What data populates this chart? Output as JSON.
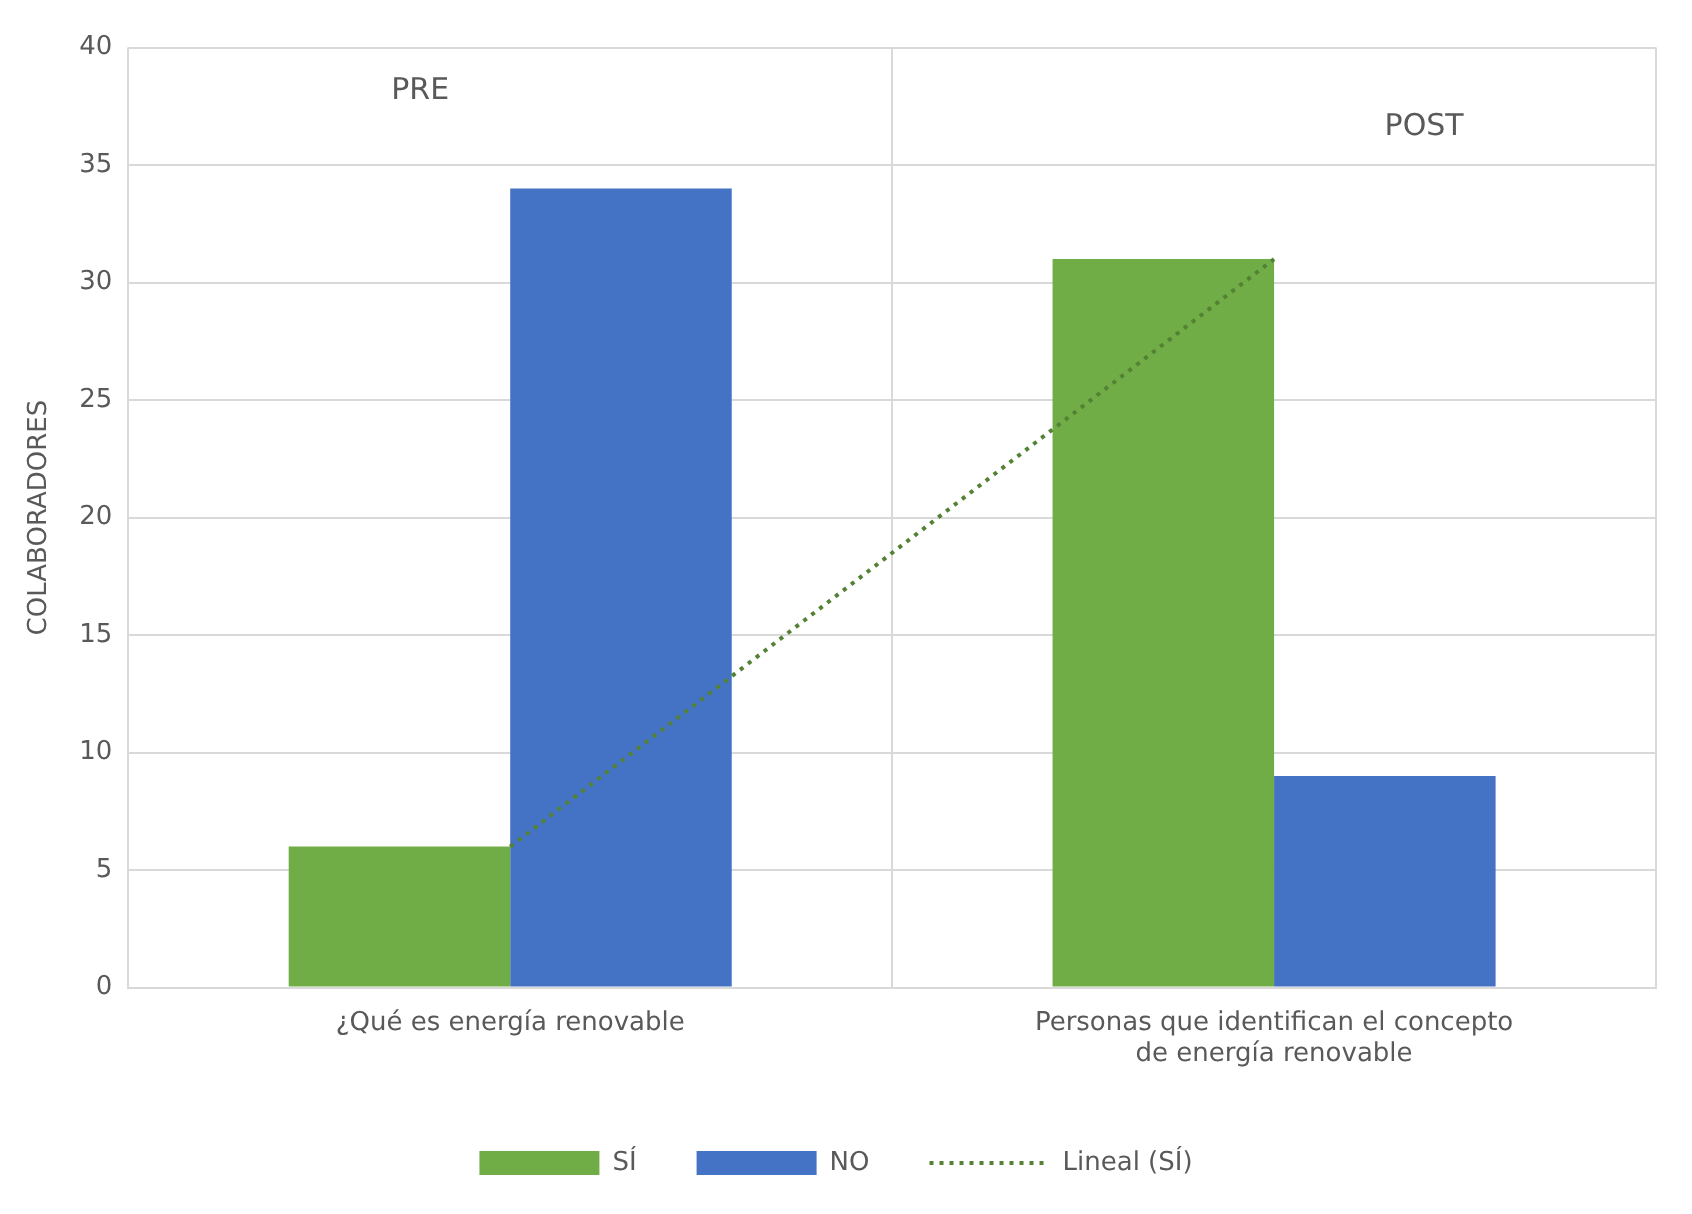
{
  "chart_data": {
    "type": "bar",
    "ylabel": "COLABORADORES",
    "categories": [
      "¿Qué es energía renovable",
      "Personas que identifican el concepto de energía renovable"
    ],
    "series": [
      {
        "name": "SÍ",
        "color": "#70ad47",
        "values": [
          6,
          31
        ]
      },
      {
        "name": "NO",
        "color": "#4472c4",
        "values": [
          34,
          9
        ]
      },
      {
        "name": "Lineal (SÍ)",
        "type": "line",
        "color": "#548235",
        "values": [
          6,
          31
        ],
        "line_style": "dotted",
        "marker": "none"
      }
    ],
    "annotations": [
      "PRE",
      "POST"
    ],
    "ylim": [
      0,
      40
    ],
    "yticks": [
      0,
      5,
      10,
      15,
      20,
      25,
      30,
      35,
      40
    ],
    "grid": true,
    "legend": "bottom"
  }
}
